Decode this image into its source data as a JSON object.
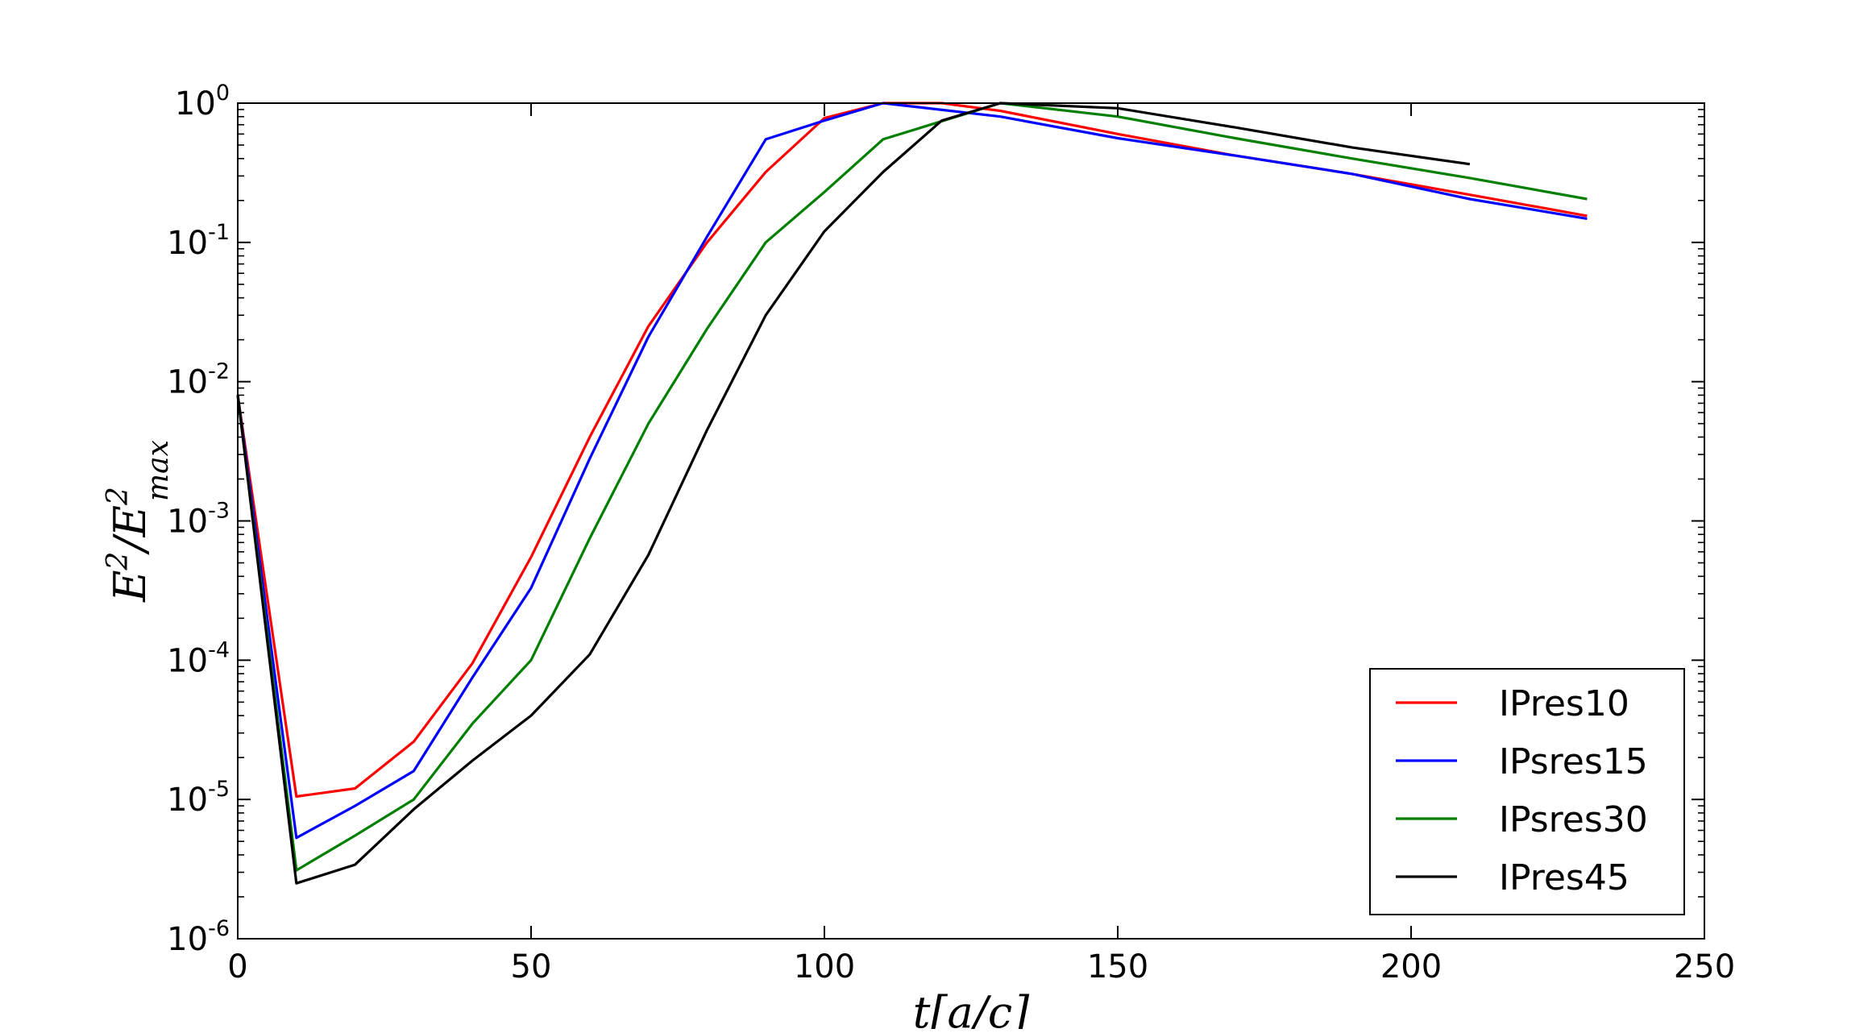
{
  "chart_data": {
    "type": "line",
    "title": "",
    "xlabel": "t[a/c]",
    "ylabel": "E^2/E^2_max",
    "x_scale": "linear",
    "y_scale": "log",
    "xlim": [
      0,
      250
    ],
    "ylim": [
      1e-06,
      1
    ],
    "x_ticks": [
      0,
      50,
      100,
      150,
      200,
      250
    ],
    "x_tick_labels": [
      "0",
      "50",
      "100",
      "150",
      "200",
      "250"
    ],
    "y_ticks": [
      -6,
      -5,
      -4,
      -3,
      -2,
      -1,
      0
    ],
    "y_tick_labels": [
      {
        "base": "10",
        "exp": "-6"
      },
      {
        "base": "10",
        "exp": "-5"
      },
      {
        "base": "10",
        "exp": "-4"
      },
      {
        "base": "10",
        "exp": "-3"
      },
      {
        "base": "10",
        "exp": "-2"
      },
      {
        "base": "10",
        "exp": "-1"
      },
      {
        "base": "10",
        "exp": "0"
      }
    ],
    "grid": false,
    "legend_position": "lower-right",
    "series": [
      {
        "name": "IPres10",
        "color": "#ff0000",
        "x": [
          0,
          10,
          20,
          30,
          40,
          50,
          60,
          70,
          80,
          90,
          100,
          110,
          120,
          130,
          150,
          170,
          190,
          210,
          230
        ],
        "y": [
          0.008,
          1.05e-05,
          1.2e-05,
          2.6e-05,
          9.5e-05,
          0.00055,
          0.004,
          0.025,
          0.1,
          0.32,
          0.78,
          1.0,
          1.0,
          0.88,
          0.6,
          0.42,
          0.31,
          0.22,
          0.155
        ]
      },
      {
        "name": "IPsres15",
        "color": "#0000ff",
        "x": [
          0,
          10,
          20,
          30,
          40,
          50,
          60,
          70,
          80,
          90,
          100,
          110,
          130,
          150,
          170,
          190,
          210,
          230
        ],
        "y": [
          0.008,
          5.3e-06,
          9e-06,
          1.6e-05,
          7.5e-05,
          0.00033,
          0.0028,
          0.021,
          0.11,
          0.55,
          0.75,
          1.0,
          0.8,
          0.56,
          0.42,
          0.31,
          0.205,
          0.148
        ]
      },
      {
        "name": "IPsres30",
        "color": "#007f00",
        "x": [
          0,
          10,
          20,
          30,
          40,
          50,
          60,
          70,
          80,
          90,
          100,
          110,
          130,
          150,
          170,
          190,
          210,
          230
        ],
        "y": [
          0.008,
          3.1e-06,
          5.5e-06,
          1e-05,
          3.5e-05,
          0.0001,
          0.00075,
          0.005,
          0.024,
          0.1,
          0.23,
          0.55,
          1.0,
          0.8,
          0.56,
          0.4,
          0.29,
          0.205
        ]
      },
      {
        "name": "IPres45",
        "color": "#000000",
        "x": [
          0,
          10,
          20,
          30,
          40,
          50,
          60,
          70,
          80,
          90,
          100,
          110,
          120,
          130,
          150,
          170,
          190,
          210
        ],
        "y": [
          0.008,
          2.5e-06,
          3.4e-06,
          8.5e-06,
          1.9e-05,
          4e-05,
          0.00011,
          0.00057,
          0.0045,
          0.03,
          0.12,
          0.32,
          0.75,
          1.0,
          0.92,
          0.67,
          0.48,
          0.365
        ]
      }
    ]
  }
}
